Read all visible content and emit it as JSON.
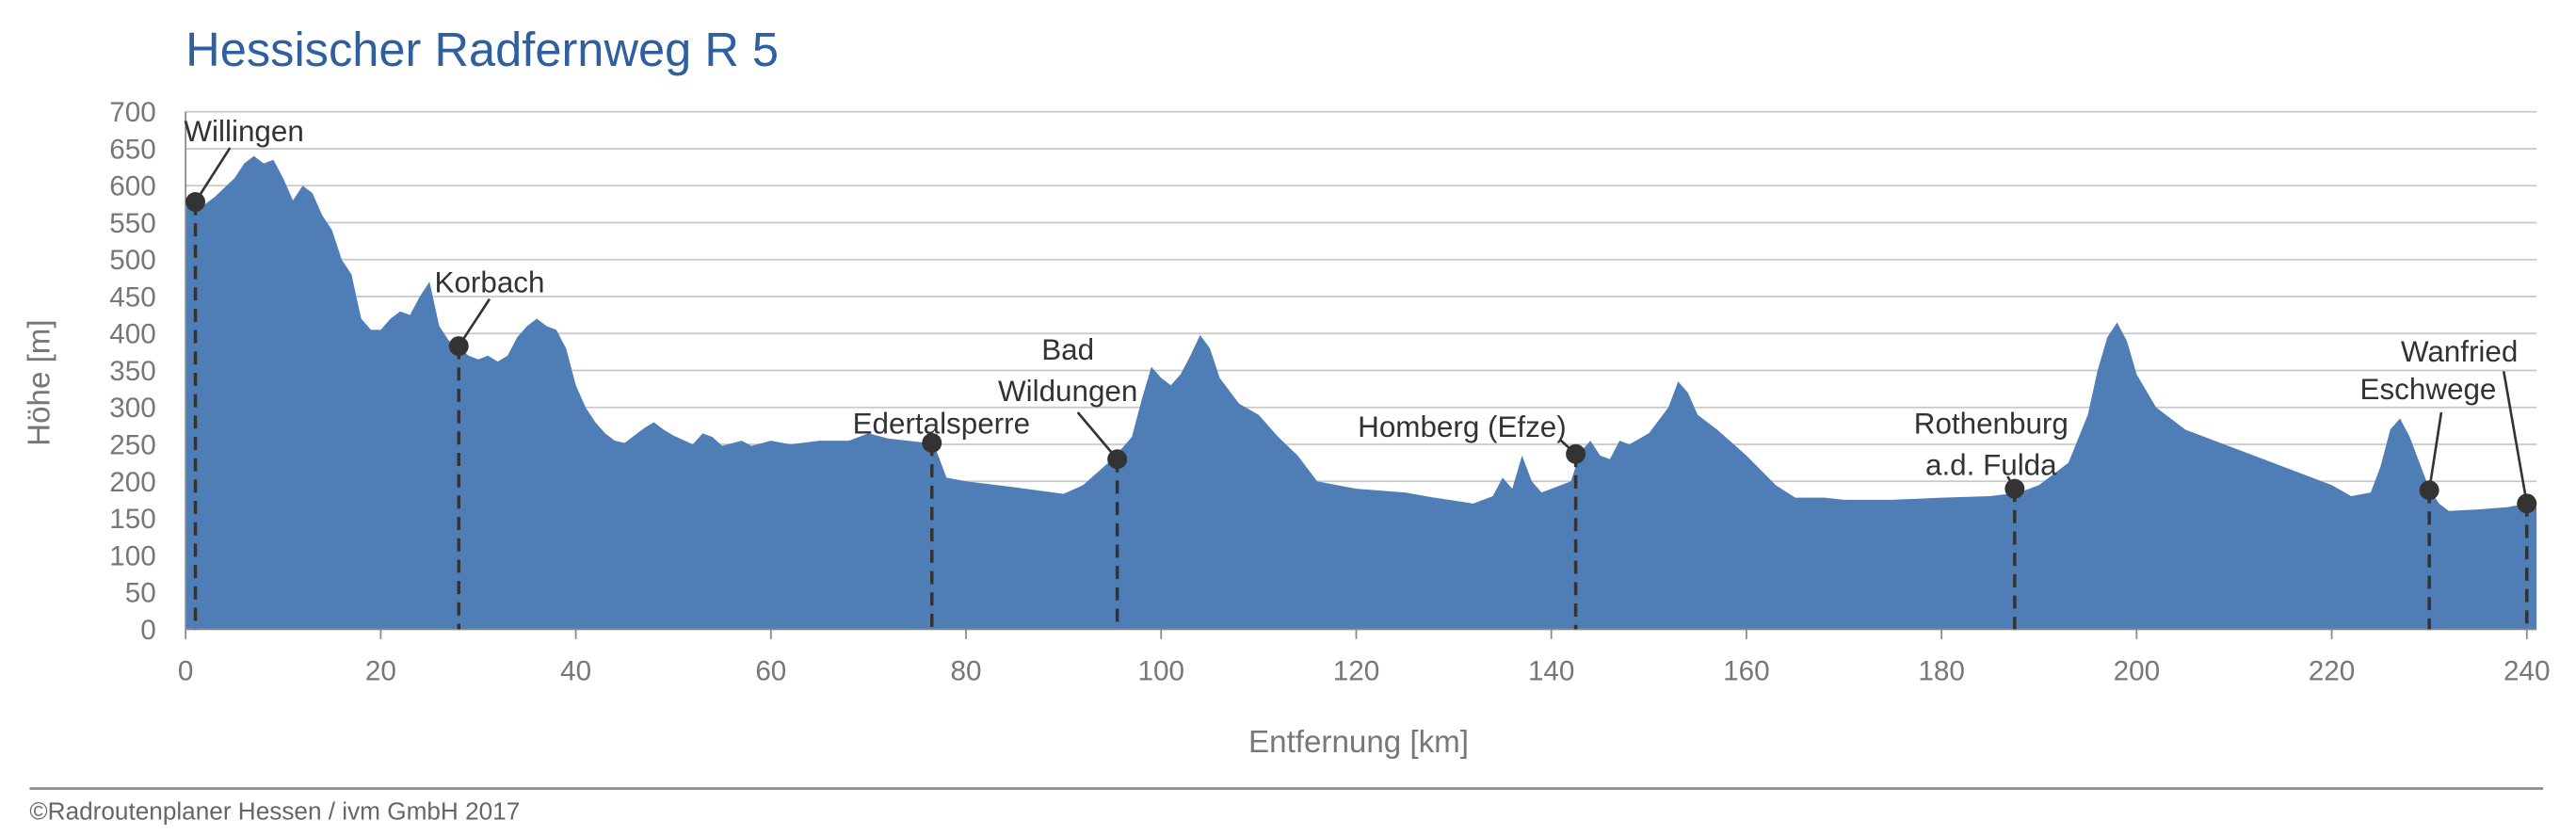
{
  "chart_data": {
    "type": "area",
    "title": "Hessischer Radfernweg R 5",
    "x_label": "Entfernung [km]",
    "y_label": "Höhe [m]",
    "footer": "©Radroutenplaner Hessen / ivm GmbH 2017",
    "color": "#4f7db5",
    "grid": true,
    "xlim": [
      0,
      241
    ],
    "ylim": [
      0,
      700
    ],
    "xticks": [
      0,
      20,
      40,
      60,
      80,
      100,
      120,
      140,
      160,
      180,
      200,
      220,
      240
    ],
    "yticks": [
      0,
      50,
      100,
      150,
      200,
      250,
      300,
      350,
      400,
      450,
      500,
      550,
      600,
      650,
      700
    ],
    "x": [
      0,
      1,
      2,
      3,
      5,
      6,
      7,
      8,
      9,
      10,
      11,
      12,
      13,
      14,
      15,
      16,
      17,
      18,
      19,
      20,
      21,
      22,
      23,
      24,
      25,
      26,
      27,
      28,
      29,
      30,
      31,
      32,
      33,
      34,
      35,
      36,
      37,
      38,
      39,
      40,
      41,
      42,
      43,
      44,
      45,
      46,
      47,
      48,
      49,
      50,
      52,
      53,
      54,
      55,
      57,
      58,
      60,
      62,
      65,
      68,
      70,
      72,
      74,
      76,
      77,
      78,
      80,
      85,
      90,
      92,
      95,
      97,
      98,
      99,
      100,
      101,
      102,
      103,
      104,
      105,
      106,
      108,
      110,
      112,
      114,
      116,
      118,
      120,
      125,
      128,
      132,
      134,
      135,
      136,
      137,
      138,
      139,
      141,
      142,
      143,
      144,
      145,
      146,
      147,
      148,
      150,
      152,
      153,
      154,
      155,
      157,
      160,
      163,
      165,
      168,
      170,
      175,
      180,
      185,
      188,
      190,
      193,
      195,
      196,
      197,
      198,
      199,
      200,
      202,
      205,
      210,
      215,
      220,
      222,
      224,
      225,
      226,
      227,
      228,
      229,
      230,
      231,
      232,
      235,
      238,
      240,
      241
    ],
    "values": [
      570,
      578,
      575,
      585,
      610,
      630,
      640,
      630,
      635,
      610,
      580,
      600,
      590,
      560,
      540,
      500,
      480,
      420,
      405,
      405,
      420,
      430,
      425,
      450,
      470,
      410,
      390,
      383,
      370,
      365,
      370,
      362,
      370,
      395,
      410,
      420,
      410,
      405,
      380,
      330,
      300,
      280,
      265,
      255,
      252,
      262,
      272,
      280,
      270,
      262,
      250,
      265,
      260,
      248,
      255,
      248,
      255,
      250,
      255,
      255,
      265,
      258,
      255,
      252,
      240,
      205,
      200,
      192,
      183,
      195,
      230,
      260,
      310,
      355,
      340,
      330,
      345,
      370,
      398,
      380,
      340,
      305,
      290,
      260,
      235,
      200,
      195,
      190,
      185,
      178,
      170,
      180,
      205,
      190,
      235,
      200,
      185,
      195,
      200,
      240,
      255,
      235,
      230,
      255,
      250,
      265,
      300,
      335,
      320,
      290,
      270,
      235,
      195,
      178,
      178,
      175,
      175,
      178,
      180,
      185,
      195,
      225,
      290,
      350,
      395,
      415,
      390,
      345,
      300,
      270,
      245,
      220,
      195,
      180,
      185,
      220,
      270,
      285,
      260,
      225,
      190,
      170,
      160,
      162,
      165,
      170,
      165
    ],
    "markers": [
      {
        "label": [
          "Willingen"
        ],
        "x": 1,
        "y": 578
      },
      {
        "label": [
          "Korbach"
        ],
        "x": 28,
        "y": 383
      },
      {
        "label": [
          "Edertalsperre"
        ],
        "x": 76.5,
        "y": 252
      },
      {
        "label": [
          "Bad",
          "Wildungen"
        ],
        "x": 95.5,
        "y": 230
      },
      {
        "label": [
          "Homberg (Efze)"
        ],
        "x": 142.5,
        "y": 237
      },
      {
        "label": [
          "Rothenburg",
          "a.d. Fulda"
        ],
        "x": 187.5,
        "y": 190
      },
      {
        "label": [
          "Eschwege"
        ],
        "x": 230,
        "y": 188
      },
      {
        "label": [
          "Wanfried"
        ],
        "x": 240,
        "y": 170
      }
    ]
  }
}
